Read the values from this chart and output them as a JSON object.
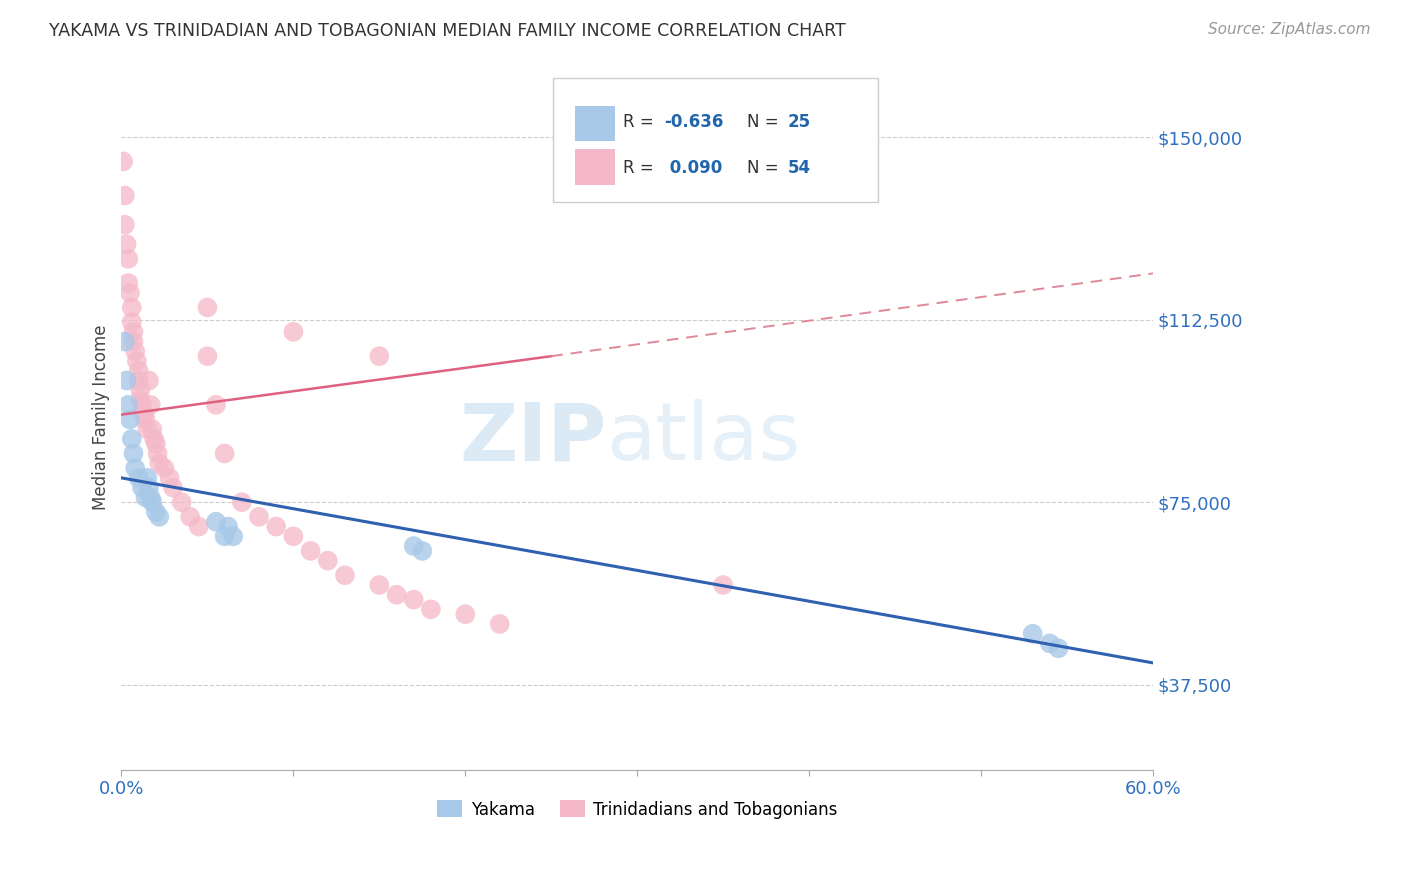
{
  "title": "YAKAMA VS TRINIDADIAN AND TOBAGONIAN MEDIAN FAMILY INCOME CORRELATION CHART",
  "source": "Source: ZipAtlas.com",
  "ylabel": "Median Family Income",
  "y_ticks": [
    37500,
    75000,
    112500,
    150000
  ],
  "y_tick_labels": [
    "$37,500",
    "$75,000",
    "$112,500",
    "$150,000"
  ],
  "xlim": [
    0.0,
    0.6
  ],
  "ylim": [
    20000,
    165000
  ],
  "legend_label_1": "Yakama",
  "legend_label_2": "Trinidadians and Tobagonians",
  "R1": -0.636,
  "N1": 25,
  "R2": 0.09,
  "N2": 54,
  "color_blue": "#a8c8e8",
  "color_pink": "#f4b8c8",
  "color_blue_line": "#3060b0",
  "color_pink_line": "#e06080",
  "color_pink_dash": "#e08898",
  "watermark_zip": "ZIP",
  "watermark_atlas": "atlas",
  "yakama_x": [
    0.002,
    0.003,
    0.004,
    0.005,
    0.006,
    0.007,
    0.008,
    0.01,
    0.012,
    0.014,
    0.015,
    0.016,
    0.017,
    0.018,
    0.02,
    0.022,
    0.055,
    0.06,
    0.062,
    0.065,
    0.17,
    0.175,
    0.53,
    0.54,
    0.545
  ],
  "yakama_y": [
    108000,
    100000,
    95000,
    92000,
    88000,
    85000,
    82000,
    80000,
    78000,
    76000,
    80000,
    78000,
    76000,
    75000,
    73000,
    72000,
    71000,
    68000,
    70000,
    68000,
    66000,
    65000,
    48000,
    46000,
    45000
  ],
  "trini_x": [
    0.001,
    0.002,
    0.002,
    0.003,
    0.004,
    0.004,
    0.005,
    0.006,
    0.006,
    0.007,
    0.007,
    0.008,
    0.009,
    0.01,
    0.01,
    0.011,
    0.011,
    0.012,
    0.013,
    0.014,
    0.015,
    0.016,
    0.017,
    0.018,
    0.019,
    0.02,
    0.021,
    0.022,
    0.025,
    0.028,
    0.03,
    0.035,
    0.04,
    0.045,
    0.05,
    0.055,
    0.06,
    0.07,
    0.08,
    0.09,
    0.1,
    0.11,
    0.12,
    0.13,
    0.15,
    0.16,
    0.17,
    0.18,
    0.2,
    0.22,
    0.05,
    0.1,
    0.15,
    0.35
  ],
  "trini_y": [
    145000,
    138000,
    132000,
    128000,
    125000,
    120000,
    118000,
    115000,
    112000,
    110000,
    108000,
    106000,
    104000,
    102000,
    100000,
    98000,
    96000,
    95000,
    93000,
    92000,
    90000,
    100000,
    95000,
    90000,
    88000,
    87000,
    85000,
    83000,
    82000,
    80000,
    78000,
    75000,
    72000,
    70000,
    105000,
    95000,
    85000,
    75000,
    72000,
    70000,
    68000,
    65000,
    63000,
    60000,
    58000,
    56000,
    55000,
    53000,
    52000,
    50000,
    115000,
    110000,
    105000,
    58000
  ]
}
